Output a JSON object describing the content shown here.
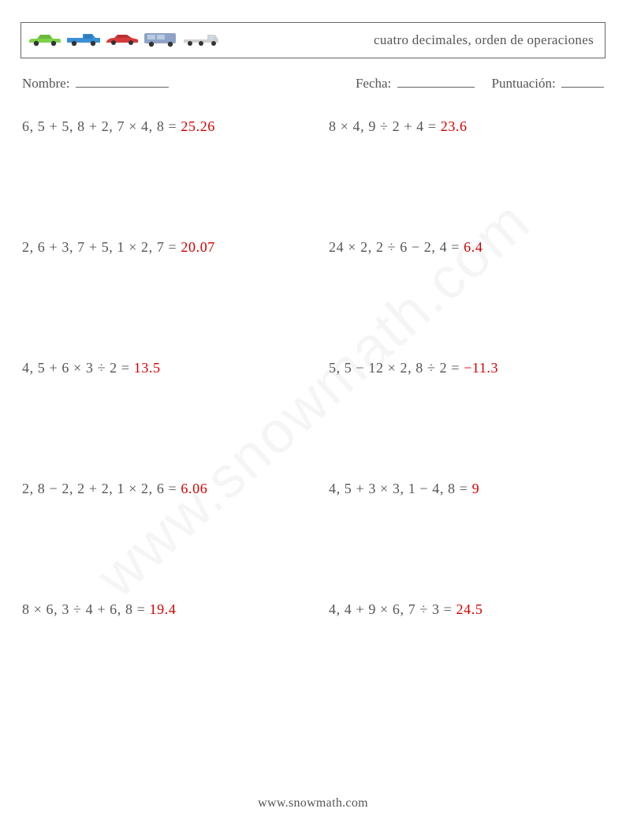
{
  "header": {
    "title": "cuatro decimales, orden de operaciones",
    "cars": [
      {
        "body": "#7fd14a",
        "roof": "#5fb030",
        "wheel": "#333"
      },
      {
        "body": "#3a8fd6",
        "roof": "#2a6fa8",
        "wheel": "#333"
      },
      {
        "body": "#d63a3a",
        "roof": "#a52a2a",
        "wheel": "#333"
      },
      {
        "body": "#8fa3c7",
        "roof": "#6f83a7",
        "wheel": "#333"
      },
      {
        "body": "#cfcfcf",
        "roof": "#9f9f9f",
        "wheel": "#333"
      }
    ]
  },
  "info": {
    "name_label": "Nombre:",
    "date_label": "Fecha:",
    "score_label": "Puntuación:",
    "name_blank_width": 118,
    "date_blank_width": 98,
    "score_blank_width": 54
  },
  "problems": [
    {
      "expr": "6, 5 + 5, 8 + 2, 7 × 4, 8 = ",
      "ans": "25.26"
    },
    {
      "expr": "8 × 4, 9 ÷ 2 + 4 = ",
      "ans": "23.6"
    },
    {
      "expr": "2, 6 + 3, 7 + 5, 1 × 2, 7 = ",
      "ans": "20.07"
    },
    {
      "expr": "24 × 2, 2 ÷ 6 − 2, 4 = ",
      "ans": "6.4"
    },
    {
      "expr": "4, 5 + 6 × 3 ÷ 2 = ",
      "ans": "13.5"
    },
    {
      "expr": "5, 5 − 12 × 2, 8 ÷ 2 = ",
      "ans": "−11.3"
    },
    {
      "expr": "2, 8 − 2, 2 + 2, 1 × 2, 6 = ",
      "ans": "6.06"
    },
    {
      "expr": "4, 5 + 3 × 3, 1 − 4, 8 = ",
      "ans": "9"
    },
    {
      "expr": "8 × 6, 3 ÷ 4 + 6, 8 = ",
      "ans": "19.4"
    },
    {
      "expr": "4, 4 + 9 × 6, 7 ÷ 3 = ",
      "ans": "24.5"
    }
  ],
  "watermark": "www.snowmath.com",
  "footer": "www.snowmath.com",
  "style": {
    "page_bg": "#ffffff",
    "text_color": "#555555",
    "answer_color": "#d30000",
    "border_color": "#666666",
    "watermark_color": "rgba(120,120,120,0.07)",
    "font_family": "Georgia, 'Times New Roman', serif",
    "title_fontsize": 17,
    "info_fontsize": 17,
    "problem_fontsize": 18,
    "footer_fontsize": 16,
    "watermark_fontsize": 74,
    "row_gap": 132,
    "col_gap": 40
  }
}
